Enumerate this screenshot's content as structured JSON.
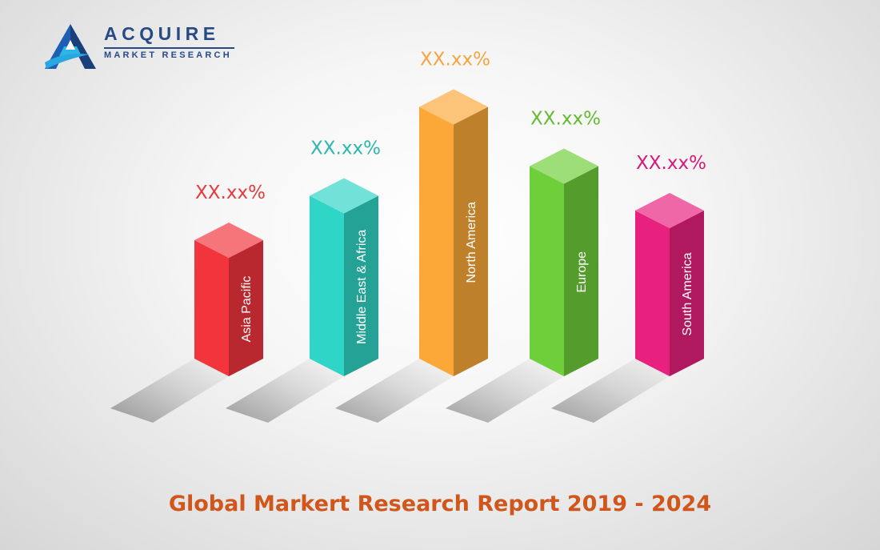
{
  "brand": {
    "name": "ACQUIRE",
    "tagline": "MARKET RESEARCH"
  },
  "report_title": "Global Markert Research Report 2019 - 2024",
  "chart_data": {
    "type": "bar",
    "title": "",
    "categories": [
      "Asia Pacific",
      "Middle East & Africa",
      "North America",
      "Europe",
      "South America"
    ],
    "value_labels": [
      "XX.xx%",
      "XX.xx%",
      "XX.xx%",
      "XX.xx%",
      "XX.xx%"
    ],
    "values": [
      4,
      5.5,
      8.5,
      6.5,
      5
    ],
    "colors": [
      "#f2343c",
      "#2fd5c6",
      "#fba838",
      "#6fcf3a",
      "#e8207e"
    ],
    "value_label_colors": [
      "#e73a3c",
      "#2ab8ae",
      "#f5a53f",
      "#62bb2f",
      "#d7197c"
    ],
    "ylim": [
      0,
      10
    ],
    "grid": false,
    "legend": "none"
  }
}
